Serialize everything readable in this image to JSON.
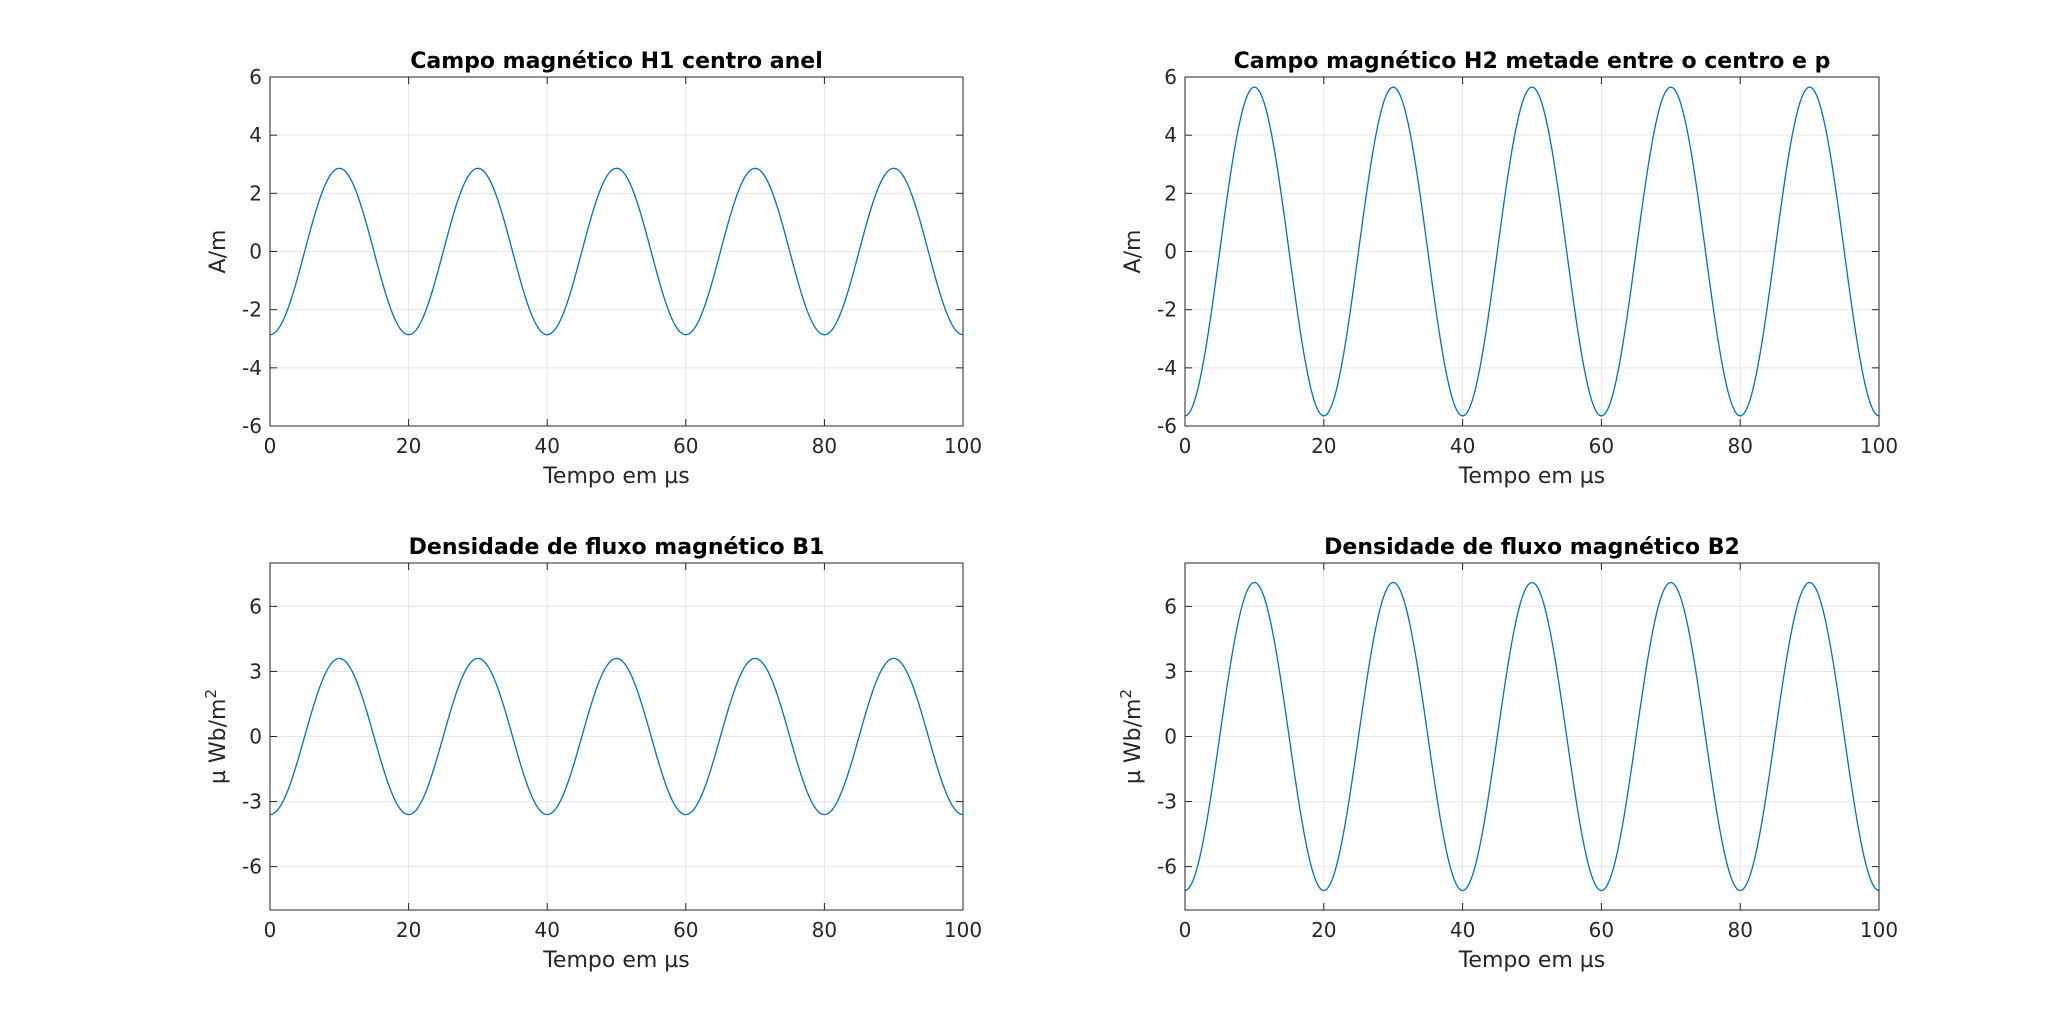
{
  "figure": {
    "background": "#ffffff",
    "line_color": "#0072bd",
    "grid_color": "#e6e6e6",
    "axis_color": "#262626"
  },
  "chart_data": [
    {
      "type": "line",
      "title": "Campo magnético H1 centro anel",
      "xlabel": "Tempo em µs",
      "ylabel": "A/m",
      "ylabel_sup": "",
      "xlim": [
        0,
        100
      ],
      "ylim": [
        -6,
        6
      ],
      "xticks": [
        0,
        20,
        40,
        60,
        80,
        100
      ],
      "yticks": [
        -6,
        -4,
        -2,
        0,
        2,
        4,
        6
      ],
      "grid": true,
      "series": [
        {
          "function": "-amplitude*cos(2*pi*x/period)",
          "amplitude": 2.86,
          "period": 20,
          "x_start": 0,
          "x_end": 100
        }
      ]
    },
    {
      "type": "line",
      "title": "Campo magnético H2 metade entre o centro e p",
      "xlabel": "Tempo em µs",
      "ylabel": "A/m",
      "ylabel_sup": "",
      "xlim": [
        0,
        100
      ],
      "ylim": [
        -6,
        6
      ],
      "xticks": [
        0,
        20,
        40,
        60,
        80,
        100
      ],
      "yticks": [
        -6,
        -4,
        -2,
        0,
        2,
        4,
        6
      ],
      "grid": true,
      "series": [
        {
          "function": "-amplitude*cos(2*pi*x/period)",
          "amplitude": 5.65,
          "period": 20,
          "x_start": 0,
          "x_end": 100
        }
      ]
    },
    {
      "type": "line",
      "title": "Densidade de fluxo magnético B1",
      "xlabel": "Tempo em µs",
      "ylabel": "µ Wb/m",
      "ylabel_sup": "2",
      "xlim": [
        0,
        100
      ],
      "ylim": [
        -8,
        8
      ],
      "xticks": [
        0,
        20,
        40,
        60,
        80,
        100
      ],
      "yticks": [
        -6,
        -3,
        0,
        3,
        6
      ],
      "grid": true,
      "series": [
        {
          "function": "-amplitude*cos(2*pi*x/period)",
          "amplitude": 3.6,
          "period": 20,
          "x_start": 0,
          "x_end": 100
        }
      ]
    },
    {
      "type": "line",
      "title": "Densidade de fluxo magnético B2",
      "xlabel": "Tempo em µs",
      "ylabel": "µ Wb/m",
      "ylabel_sup": "2",
      "xlim": [
        0,
        100
      ],
      "ylim": [
        -8,
        8
      ],
      "xticks": [
        0,
        20,
        40,
        60,
        80,
        100
      ],
      "yticks": [
        -6,
        -3,
        0,
        3,
        6
      ],
      "grid": true,
      "series": [
        {
          "function": "-amplitude*cos(2*pi*x/period)",
          "amplitude": 7.1,
          "period": 20,
          "x_start": 0,
          "x_end": 100
        }
      ]
    }
  ]
}
